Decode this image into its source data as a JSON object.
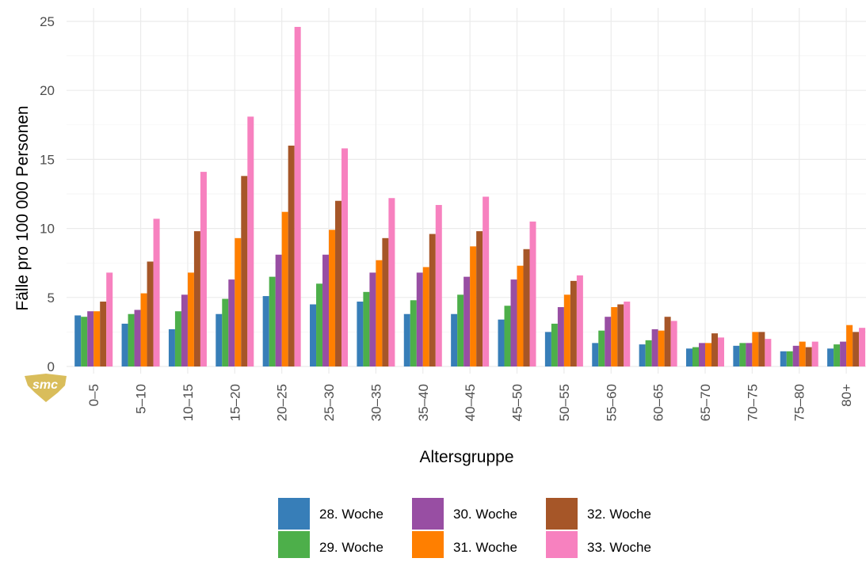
{
  "chart_data": {
    "type": "bar",
    "title": "",
    "xlabel": "Altersgruppe",
    "ylabel": "Fälle pro 100 000 Personen",
    "ylim": [
      0,
      25
    ],
    "yticks": [
      0,
      5,
      10,
      15,
      20,
      25
    ],
    "grid": true,
    "legend_position": "bottom",
    "categories": [
      "0–5",
      "5–10",
      "10–15",
      "15–20",
      "20–25",
      "25–30",
      "30–35",
      "35–40",
      "40–45",
      "45–50",
      "50–55",
      "55–60",
      "60–65",
      "65–70",
      "70–75",
      "75–80",
      "80+"
    ],
    "series": [
      {
        "name": "28. Woche",
        "color": "#377eb8",
        "values": [
          3.7,
          3.1,
          2.7,
          3.8,
          5.1,
          4.5,
          4.7,
          3.8,
          3.8,
          3.4,
          2.5,
          1.7,
          1.6,
          1.3,
          1.5,
          1.1,
          1.3
        ]
      },
      {
        "name": "29. Woche",
        "color": "#4daf4a",
        "values": [
          3.6,
          3.8,
          4.0,
          4.9,
          6.5,
          6.0,
          5.4,
          4.8,
          5.2,
          4.4,
          3.1,
          2.6,
          1.9,
          1.4,
          1.7,
          1.1,
          1.6
        ]
      },
      {
        "name": "30. Woche",
        "color": "#984ea3",
        "values": [
          4.0,
          4.1,
          5.2,
          6.3,
          8.1,
          8.1,
          6.8,
          6.8,
          6.5,
          6.3,
          4.3,
          3.6,
          2.7,
          1.7,
          1.7,
          1.5,
          1.8
        ]
      },
      {
        "name": "31. Woche",
        "color": "#ff7f00",
        "values": [
          4.0,
          5.3,
          6.8,
          9.3,
          11.2,
          9.9,
          7.7,
          7.2,
          8.7,
          7.3,
          5.2,
          4.3,
          2.6,
          1.7,
          2.5,
          1.8,
          3.0
        ]
      },
      {
        "name": "32. Woche",
        "color": "#a65628",
        "values": [
          4.7,
          7.6,
          9.8,
          13.8,
          16.0,
          12.0,
          9.3,
          9.6,
          9.8,
          8.5,
          6.2,
          4.5,
          3.6,
          2.4,
          2.5,
          1.4,
          2.5
        ]
      },
      {
        "name": "33. Woche",
        "color": "#f781bf",
        "values": [
          6.8,
          10.7,
          14.1,
          18.1,
          24.6,
          15.8,
          12.2,
          11.7,
          12.3,
          10.5,
          6.6,
          4.7,
          3.3,
          2.1,
          2.0,
          1.8,
          2.8
        ]
      }
    ]
  },
  "logo": {
    "text": "smc",
    "color": "#d9bd5b"
  }
}
